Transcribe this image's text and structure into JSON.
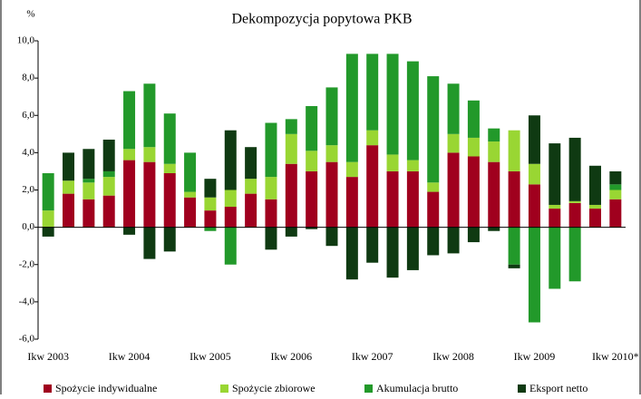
{
  "chart_data": {
    "type": "bar",
    "stacked": true,
    "title": "Dekompozycja popytowa PKB",
    "y_label": "%",
    "categories": [
      "Ikw 2003",
      null,
      null,
      null,
      "Ikw 2004",
      null,
      null,
      null,
      "Ikw 2005",
      null,
      null,
      null,
      "Ikw 2006",
      null,
      null,
      null,
      "Ikw 2007",
      null,
      null,
      null,
      "Ikw 2008",
      null,
      null,
      null,
      "Ikw 2009",
      null,
      null,
      null,
      "Ikw 2010*"
    ],
    "series": [
      {
        "name": "Spożycie  indywidualne",
        "color": "#a0001e",
        "values": [
          0,
          1.8,
          1.5,
          1.7,
          3.6,
          3.5,
          2.9,
          1.6,
          0.9,
          1.1,
          1.8,
          1.5,
          3.4,
          3.0,
          3.5,
          2.7,
          4.4,
          3.0,
          3.0,
          1.9,
          4.0,
          3.8,
          3.5,
          3.0,
          2.3,
          1.0,
          1.3,
          1.0,
          1.5
        ]
      },
      {
        "name": "Spożycie zbiorowe",
        "color": "#99d633",
        "values": [
          0.9,
          0.7,
          0.9,
          1.0,
          0.6,
          0.8,
          0.5,
          0.3,
          0.7,
          0.9,
          0.8,
          1.2,
          1.6,
          1.1,
          0.9,
          0.8,
          0.8,
          0.9,
          0.6,
          0.5,
          1.0,
          1.0,
          1.1,
          2.2,
          1.1,
          0.2,
          0.1,
          0.2,
          0.5
        ]
      },
      {
        "name": "Akumulacja brutto",
        "color": "#22992a",
        "values": [
          2.0,
          0,
          0.2,
          0.3,
          3.1,
          3.4,
          2.7,
          2.1,
          -0.2,
          -2.0,
          0,
          2.9,
          0.8,
          2.4,
          3.1,
          5.8,
          4.1,
          5.4,
          5.3,
          5.7,
          2.7,
          2.0,
          0.7,
          -2.0,
          -5.1,
          -3.3,
          -2.9,
          0,
          0.3
        ]
      },
      {
        "name": "Eksport netto",
        "color": "#0f3a12",
        "values": [
          -0.5,
          1.5,
          1.6,
          1.7,
          -0.4,
          -1.7,
          -1.3,
          0,
          1.0,
          3.2,
          1.7,
          -1.2,
          -0.5,
          -0.1,
          -1.0,
          -2.8,
          -1.9,
          -2.7,
          -2.3,
          -1.5,
          -1.4,
          -0.8,
          -0.2,
          -0.2,
          2.6,
          3.3,
          3.4,
          2.1,
          0.7
        ]
      }
    ],
    "ylim": [
      -6,
      10
    ],
    "yticks": [
      {
        "value": -6,
        "label": "-6,0"
      },
      {
        "value": -4,
        "label": "-4,0"
      },
      {
        "value": -2,
        "label": "-2,0"
      },
      {
        "value": 0,
        "label": "0,0"
      },
      {
        "value": 2,
        "label": "2,0"
      },
      {
        "value": 4,
        "label": "4,0"
      },
      {
        "value": 6,
        "label": "6,0"
      },
      {
        "value": 8,
        "label": "8,0"
      },
      {
        "value": 10,
        "label": "10,0"
      }
    ],
    "grid": false,
    "legend": "bottom"
  }
}
